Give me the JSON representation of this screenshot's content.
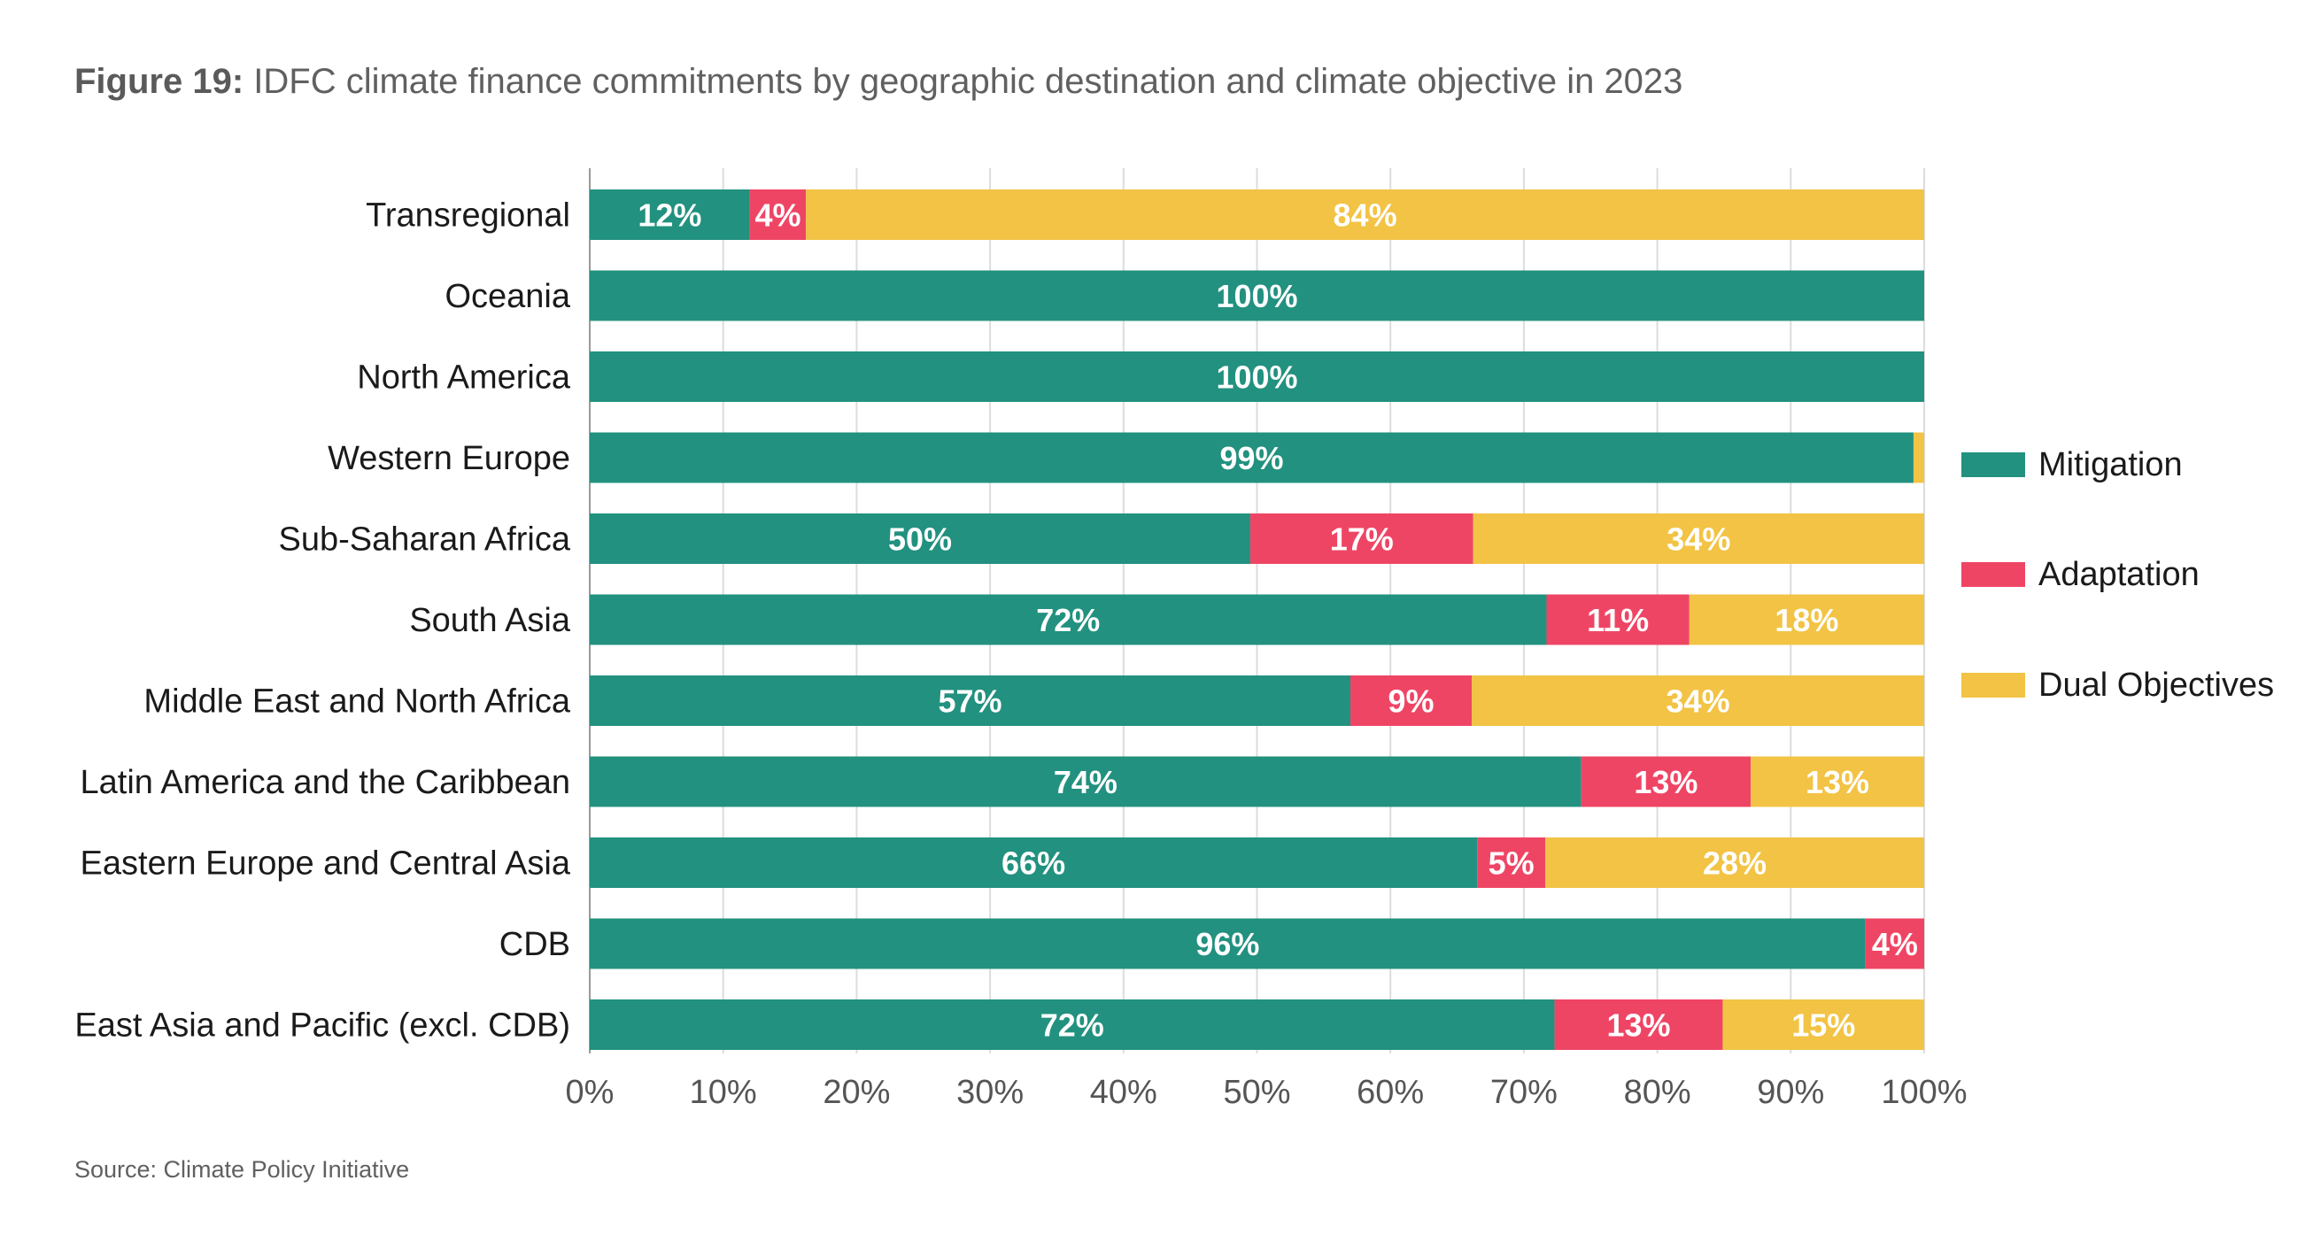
{
  "figure": {
    "number": "Figure 19:",
    "title": "IDFC climate finance commitments by geographic destination and climate objective in 2023",
    "source": "Source: Climate Policy Initiative"
  },
  "chart_data": {
    "type": "bar",
    "orientation": "horizontal",
    "stacked": true,
    "title": "IDFC climate finance commitments by geographic destination and climate objective in 2023",
    "xlabel": "",
    "ylabel": "",
    "xlim": [
      0,
      100
    ],
    "x_ticks": [
      "0%",
      "10%",
      "20%",
      "30%",
      "40%",
      "50%",
      "60%",
      "70%",
      "80%",
      "90%",
      "100%"
    ],
    "grid": "vertical",
    "legend_position": "right",
    "categories": [
      "Transregional",
      "Oceania",
      "North America",
      "Western Europe",
      "Sub-Saharan Africa",
      "South Asia",
      "Middle East and North Africa",
      "Latin America and the Caribbean",
      "Eastern Europe and Central Asia",
      "CDB",
      "East Asia and Pacific (excl. CDB)"
    ],
    "series": [
      {
        "name": "Mitigation",
        "color": "#22917f",
        "values": [
          12,
          100,
          100,
          99.2,
          49.5,
          71.7,
          57,
          74.3,
          66.5,
          95.6,
          72.3
        ],
        "labels": [
          "12%",
          "100%",
          "100%",
          "99%",
          "50%",
          "72%",
          "57%",
          "74%",
          "66%",
          "96%",
          "72%"
        ]
      },
      {
        "name": "Adaptation",
        "color": "#ef4565",
        "values": [
          4.2,
          0,
          0,
          0,
          16.7,
          10.7,
          9.1,
          12.7,
          5.1,
          4.4,
          12.6
        ],
        "labels": [
          "4%",
          "",
          "",
          "",
          "17%",
          "11%",
          "9%",
          "13%",
          "5%",
          "4%",
          "13%"
        ]
      },
      {
        "name": "Dual Objectives",
        "color": "#f2c344",
        "values": [
          83.8,
          0,
          0,
          0.8,
          33.8,
          17.6,
          33.9,
          13,
          28.4,
          0,
          15.1
        ],
        "labels": [
          "84%",
          "",
          "",
          "",
          "34%",
          "18%",
          "34%",
          "13%",
          "28%",
          "",
          "15%"
        ]
      }
    ]
  }
}
